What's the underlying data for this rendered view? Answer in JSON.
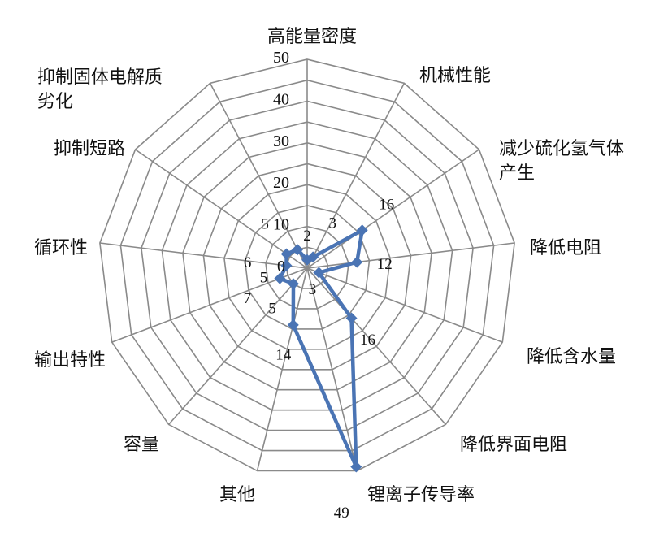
{
  "chart_data": {
    "type": "radar",
    "categories": [
      "高能量密度",
      "机械性能",
      "减少硫化氢气体产生",
      "降低电阻",
      "降低含水量",
      "降低界面电阻",
      "锂离子传导率",
      "其他",
      "容量",
      "输出特性",
      "循环性",
      "抑制短路",
      "抑制固体电解质劣化"
    ],
    "series": [
      {
        "values": [
          2,
          3,
          16,
          12,
          3,
          16,
          49,
          14,
          5,
          7,
          5,
          6,
          5
        ]
      }
    ],
    "value_labels": [
      "2",
      "3",
      "16",
      "12",
      "3",
      "16",
      "49",
      "14",
      "5",
      "7",
      "5",
      "6",
      "5"
    ],
    "radial_ticks": [
      "0",
      "10",
      "20",
      "30",
      "40",
      "50"
    ],
    "rlim": [
      0,
      50
    ],
    "grid": true,
    "legend": "none",
    "colors": {
      "series": "#4a74b4",
      "grid": "#8a8a8a"
    }
  }
}
